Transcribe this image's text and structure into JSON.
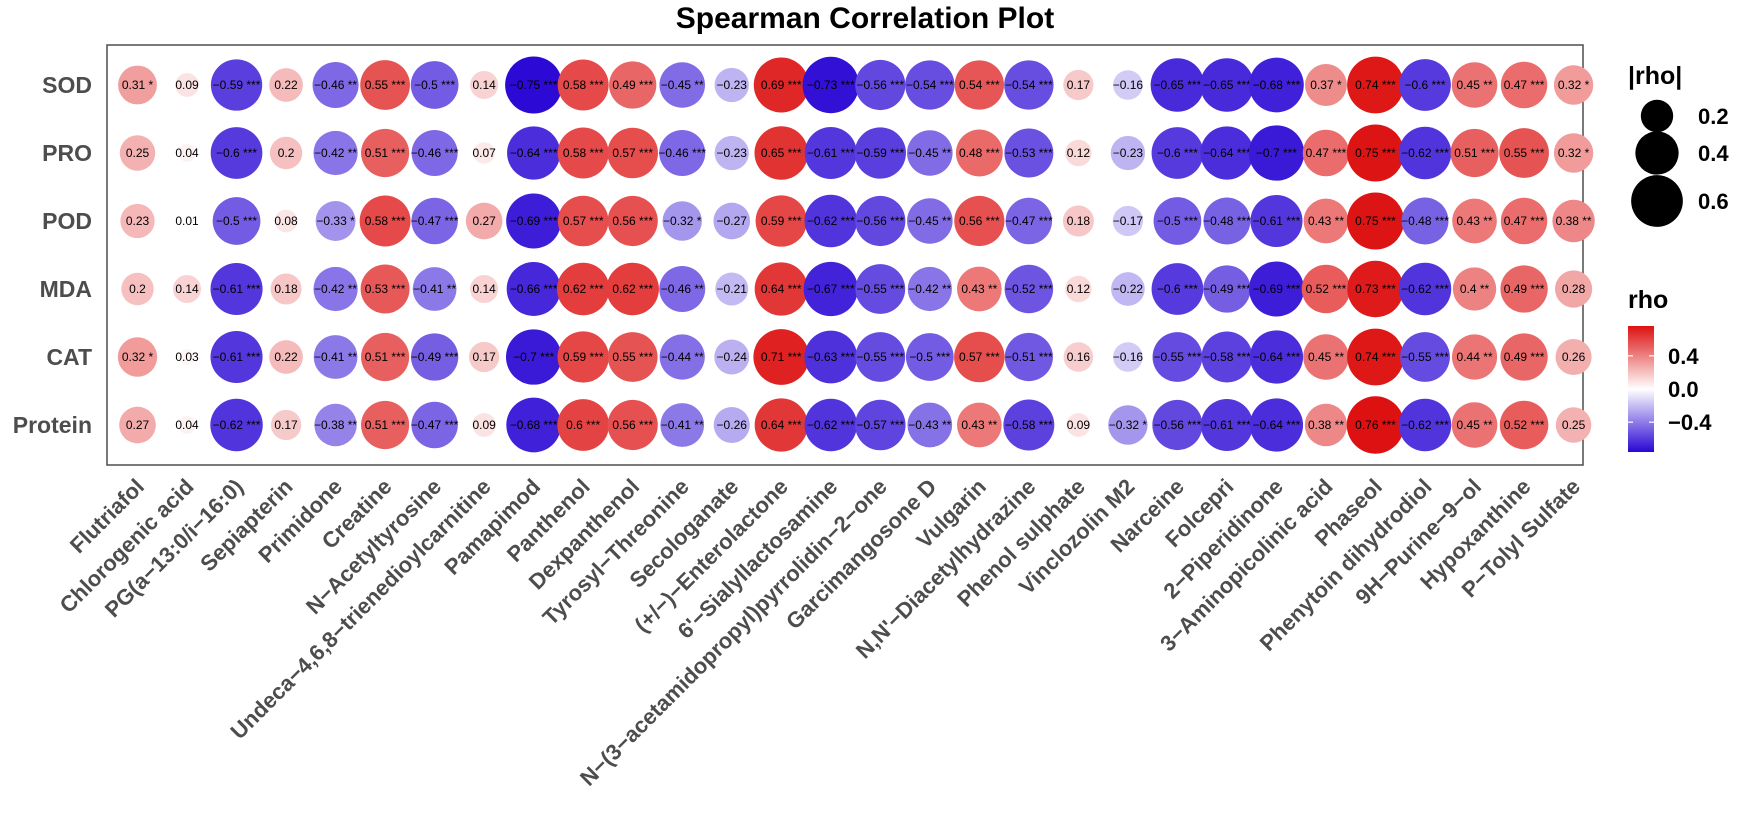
{
  "chart_data": {
    "type": "correlation-dotplot",
    "title": "Spearman Correlation Plot",
    "rows": [
      "SOD",
      "PRO",
      "POD",
      "MDA",
      "CAT",
      "Protein"
    ],
    "columns": [
      "Flutriafol",
      "Chlorogenic acid",
      "PG(a−13:0/i−16:0)",
      "Sepiapterin",
      "Primidone",
      "Creatine",
      "N−Acetyltyrosine",
      "Undeca−4,6,8−trienedioylcarnitine",
      "Pamapimod",
      "Panthenol",
      "Dexpanthenol",
      "Tyrosyl−Threonine",
      "Secologanate",
      "(+/−)−Enterolactone",
      "6'−Sialyllactosamine",
      "N−(3−acetamidopropyl)pyrrolidin−2−one",
      "Garcimangosone D",
      "Vulgarin",
      "N,N'−Diacetylhydrazine",
      "Phenol sulphate",
      "Vinclozolin M2",
      "Narceine",
      "Folcepri",
      "2−Piperidinone",
      "3−Aminopicolinic acid",
      "Phaseol",
      "Phenytoin dihydrodiol",
      "9H−Purine−9−ol",
      "Hypoxanthine",
      "P−Tolyl Sulfate"
    ],
    "cells": [
      [
        "0.31 *",
        "0.09",
        "−0.59 ***",
        "0.22",
        "−0.46 **",
        "0.55 ***",
        "−0.5 ***",
        "0.14",
        "−0.75 ***",
        "0.58 ***",
        "0.49 ***",
        "−0.45 **",
        "−0.23",
        "0.69 ***",
        "−0.73 ***",
        "−0.56 ***",
        "−0.54 ***",
        "0.54 ***",
        "−0.54 ***",
        "0.17",
        "−0.16",
        "−0.65 ***",
        "−0.65 ***",
        "−0.68 ***",
        "0.37 *",
        "0.74 ***",
        "−0.6 ***",
        "0.45 **",
        "0.47 ***",
        "0.32 *"
      ],
      [
        "0.25",
        "0.04",
        "−0.6 ***",
        "0.2",
        "−0.42 **",
        "0.51 ***",
        "−0.46 ***",
        "0.07",
        "−0.64 ***",
        "0.58 ***",
        "0.57 ***",
        "−0.46 ***",
        "−0.23",
        "0.65 ***",
        "−0.61 ***",
        "−0.59 ***",
        "−0.45 **",
        "0.48 ***",
        "−0.53 ***",
        "0.12",
        "−0.23",
        "−0.6 ***",
        "−0.64 ***",
        "−0.7 ***",
        "0.47 ***",
        "0.75 ***",
        "−0.62 ***",
        "0.51 ***",
        "0.55 ***",
        "0.32 *"
      ],
      [
        "0.23",
        "0.01",
        "−0.5 ***",
        "0.08",
        "−0.33 *",
        "0.58 ***",
        "−0.47 ***",
        "0.27",
        "−0.69 ***",
        "0.57 ***",
        "0.56 ***",
        "−0.32 *",
        "−0.27",
        "0.59 ***",
        "−0.62 ***",
        "−0.56 ***",
        "−0.45 **",
        "0.56 ***",
        "−0.47 ***",
        "0.18",
        "−0.17",
        "−0.5 ***",
        "−0.48 ***",
        "−0.61 ***",
        "0.43 **",
        "0.75 ***",
        "−0.48 ***",
        "0.43 **",
        "0.47 ***",
        "0.38 **"
      ],
      [
        "0.2",
        "0.14",
        "−0.61 ***",
        "0.18",
        "−0.42 **",
        "0.53 ***",
        "−0.41 **",
        "0.14",
        "−0.66 ***",
        "0.62 ***",
        "0.62 ***",
        "−0.46 **",
        "−0.21",
        "0.64 ***",
        "−0.67 ***",
        "−0.55 ***",
        "−0.42 **",
        "0.43 **",
        "−0.52 ***",
        "0.12",
        "−0.22",
        "−0.6 ***",
        "−0.49 ***",
        "−0.69 ***",
        "0.52 ***",
        "0.73 ***",
        "−0.62 ***",
        "0.4 **",
        "0.49 ***",
        "0.28"
      ],
      [
        "0.32 *",
        "0.03",
        "−0.61 ***",
        "0.22",
        "−0.41 **",
        "0.51 ***",
        "−0.49 ***",
        "0.17",
        "−0.7 ***",
        "0.59 ***",
        "0.55 ***",
        "−0.44 **",
        "−0.24",
        "0.71 ***",
        "−0.63 ***",
        "−0.55 ***",
        "−0.5 ***",
        "0.57 ***",
        "−0.51 ***",
        "0.16",
        "−0.16",
        "−0.55 ***",
        "−0.58 ***",
        "−0.64 ***",
        "0.45 **",
        "0.74 ***",
        "−0.55 ***",
        "0.44 **",
        "0.49 ***",
        "0.26"
      ],
      [
        "0.27",
        "0.04",
        "−0.62 ***",
        "0.17",
        "−0.38 **",
        "0.51 ***",
        "−0.47 ***",
        "0.09",
        "−0.68 ***",
        "0.6 ***",
        "0.56 ***",
        "−0.41 **",
        "−0.26",
        "0.64 ***",
        "−0.62 ***",
        "−0.57 ***",
        "−0.43 **",
        "0.43 **",
        "−0.58 ***",
        "0.09",
        "−0.32 *",
        "−0.56 ***",
        "−0.61 ***",
        "−0.64 ***",
        "0.38 **",
        "0.76 ***",
        "−0.62 ***",
        "0.45 **",
        "0.52 ***",
        "0.25"
      ]
    ],
    "size_legend": {
      "title": "|rho|",
      "values": [
        0.2,
        0.4,
        0.6
      ],
      "labels": [
        "0.2",
        "0.4",
        "0.6"
      ]
    },
    "color_legend": {
      "title": "rho",
      "ticks": [
        0.4,
        0.0,
        -0.4
      ],
      "labels": [
        "0.4",
        "0.0",
        "−0.4"
      ],
      "range": [
        -0.76,
        0.76
      ]
    },
    "colors": {
      "negative": "#2a06d4",
      "mid": "#ffffff",
      "positive": "#dd1111"
    }
  }
}
